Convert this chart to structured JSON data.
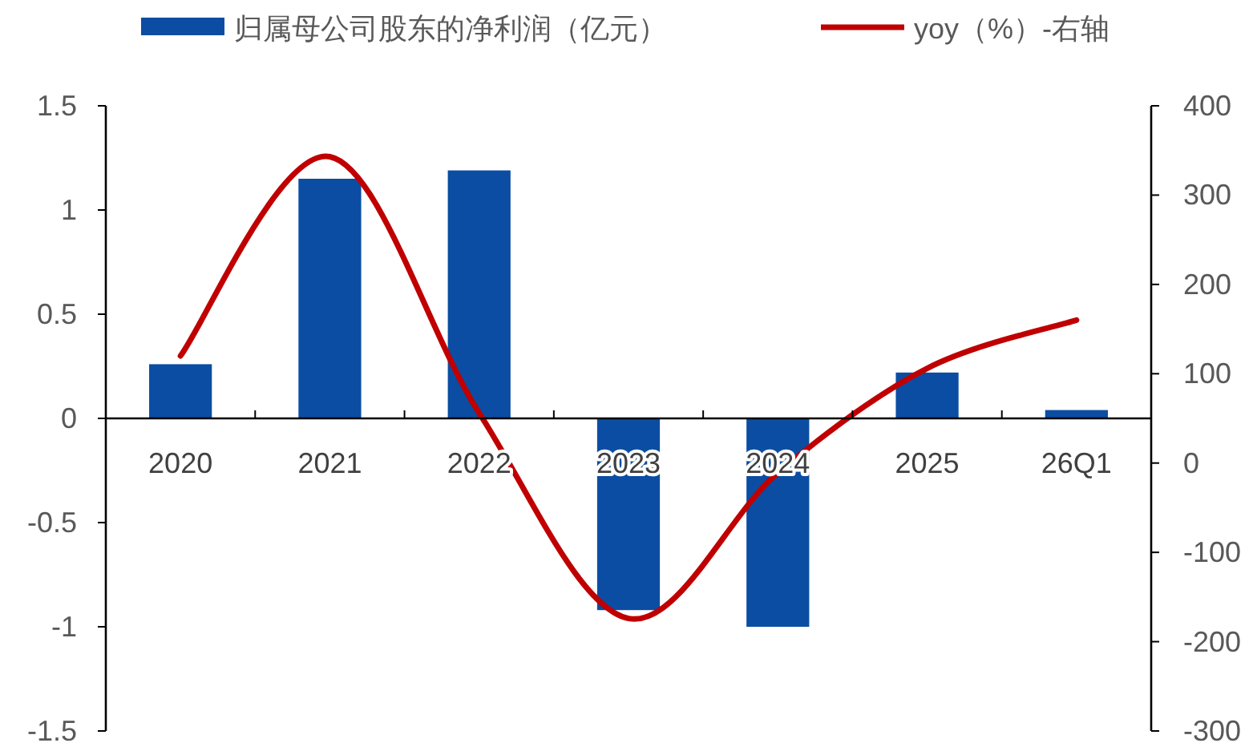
{
  "chart_data": {
    "type": "bar",
    "categories": [
      "2020",
      "2021",
      "2022",
      "2023",
      "2024",
      "2025",
      "26Q1"
    ],
    "series": [
      {
        "name": "归属母公司股东的净利润（亿元）",
        "color": "#0b4da2",
        "values": [
          0.26,
          1.15,
          1.19,
          -0.92,
          -1.0,
          0.22,
          0.04
        ]
      },
      {
        "name": "yoy（%）-右轴",
        "type": "line",
        "axis": "y2",
        "color": "#c00000",
        "values": [
          120,
          343,
          56,
          -174,
          -11,
          106,
          160
        ]
      }
    ],
    "ylim": [
      -1.5,
      1.5
    ],
    "yticks": [
      -1.5,
      -1,
      -0.5,
      0,
      0.5,
      1,
      1.5
    ],
    "y2lim": [
      -300,
      400
    ],
    "y2ticks": [
      -300,
      -200,
      -100,
      0,
      100,
      200,
      300,
      400
    ],
    "legend": "top",
    "grid": false
  }
}
